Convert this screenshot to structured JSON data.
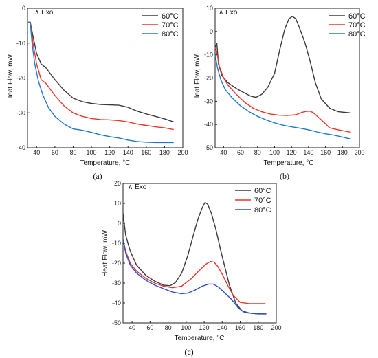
{
  "chart_data": [
    {
      "id": "a",
      "type": "line",
      "panel_label": "(a)",
      "xlabel": "Temperature, °C",
      "ylabel": "Heat Flow, mW",
      "annotation": "Exo",
      "xlim": [
        30,
        200
      ],
      "ylim": [
        -40,
        0
      ],
      "xticks": [
        40,
        60,
        80,
        100,
        120,
        140,
        160,
        180,
        200
      ],
      "yticks": [
        0,
        -10,
        -20,
        -30,
        -40
      ],
      "legend_position": "top-right",
      "series": [
        {
          "name": "60°C",
          "color": "#3a3a3a",
          "points": [
            [
              31,
              -4
            ],
            [
              33,
              -4
            ],
            [
              36,
              -8
            ],
            [
              40,
              -13
            ],
            [
              45,
              -16
            ],
            [
              50,
              -17
            ],
            [
              60,
              -20.5
            ],
            [
              70,
              -23.5
            ],
            [
              80,
              -25.8
            ],
            [
              90,
              -26.8
            ],
            [
              100,
              -27.3
            ],
            [
              110,
              -27.6
            ],
            [
              120,
              -27.7
            ],
            [
              130,
              -27.8
            ],
            [
              140,
              -28.4
            ],
            [
              150,
              -29.5
            ],
            [
              160,
              -30.3
            ],
            [
              170,
              -31
            ],
            [
              180,
              -31.7
            ],
            [
              190,
              -32.6
            ]
          ]
        },
        {
          "name": "70°C",
          "color": "#e8352c",
          "points": [
            [
              31,
              -4
            ],
            [
              33,
              -4
            ],
            [
              36,
              -10
            ],
            [
              40,
              -16
            ],
            [
              45,
              -20.5
            ],
            [
              50,
              -21.5
            ],
            [
              60,
              -25
            ],
            [
              70,
              -28
            ],
            [
              80,
              -30
            ],
            [
              90,
              -31
            ],
            [
              100,
              -31.6
            ],
            [
              110,
              -31.9
            ],
            [
              120,
              -32
            ],
            [
              130,
              -32.2
            ],
            [
              140,
              -32.6
            ],
            [
              150,
              -33.2
            ],
            [
              160,
              -33.6
            ],
            [
              170,
              -34
            ],
            [
              180,
              -34.3
            ],
            [
              190,
              -34.8
            ]
          ]
        },
        {
          "name": "80°C",
          "color": "#2278c8",
          "points": [
            [
              31,
              -4
            ],
            [
              33,
              -4
            ],
            [
              35,
              -10
            ],
            [
              38,
              -16
            ],
            [
              42,
              -21
            ],
            [
              47,
              -25
            ],
            [
              53,
              -28.5
            ],
            [
              60,
              -31
            ],
            [
              70,
              -33.2
            ],
            [
              80,
              -34.6
            ],
            [
              90,
              -35
            ],
            [
              100,
              -35.6
            ],
            [
              110,
              -36.3
            ],
            [
              120,
              -36.8
            ],
            [
              130,
              -37.2
            ],
            [
              140,
              -37.8
            ],
            [
              150,
              -38.2
            ],
            [
              160,
              -38.4
            ],
            [
              170,
              -38.5
            ],
            [
              180,
              -38.5
            ],
            [
              190,
              -38.5
            ]
          ]
        }
      ]
    },
    {
      "id": "b",
      "type": "line",
      "panel_label": "(b)",
      "xlabel": "Temperature, °C",
      "ylabel": "Heat Flow, mW",
      "annotation": "Exo",
      "xlim": [
        30,
        200
      ],
      "ylim": [
        -50,
        10
      ],
      "xticks": [
        40,
        60,
        80,
        100,
        120,
        140,
        160,
        180,
        200
      ],
      "yticks": [
        10,
        0,
        -10,
        -20,
        -30,
        -40,
        -50
      ],
      "legend_position": "top-right",
      "series": [
        {
          "name": "60°C",
          "color": "#3a3a3a",
          "points": [
            [
              30,
              -7
            ],
            [
              32,
              -5
            ],
            [
              34,
              -14
            ],
            [
              38,
              -19
            ],
            [
              45,
              -22
            ],
            [
              55,
              -24.5
            ],
            [
              65,
              -26.5
            ],
            [
              72,
              -27.8
            ],
            [
              78,
              -28.3
            ],
            [
              85,
              -27
            ],
            [
              92,
              -24
            ],
            [
              100,
              -18
            ],
            [
              106,
              -8
            ],
            [
              112,
              1
            ],
            [
              117,
              5.5
            ],
            [
              121,
              6.5
            ],
            [
              125,
              5.5
            ],
            [
              130,
              1
            ],
            [
              136,
              -5
            ],
            [
              142,
              -13
            ],
            [
              148,
              -22
            ],
            [
              155,
              -29
            ],
            [
              165,
              -33
            ],
            [
              175,
              -34.5
            ],
            [
              189,
              -35
            ]
          ]
        },
        {
          "name": "70°C",
          "color": "#e8352c",
          "points": [
            [
              30,
              -7
            ],
            [
              32,
              -9
            ],
            [
              35,
              -15
            ],
            [
              40,
              -20
            ],
            [
              45,
              -23
            ],
            [
              55,
              -27
            ],
            [
              65,
              -30.5
            ],
            [
              75,
              -33
            ],
            [
              85,
              -34.5
            ],
            [
              95,
              -35.5
            ],
            [
              105,
              -36
            ],
            [
              115,
              -36.1
            ],
            [
              125,
              -35.8
            ],
            [
              132,
              -34.8
            ],
            [
              138,
              -34.3
            ],
            [
              142,
              -34.3
            ],
            [
              146,
              -35
            ],
            [
              152,
              -37
            ],
            [
              158,
              -39
            ],
            [
              165,
              -41.5
            ],
            [
              175,
              -42.3
            ],
            [
              189,
              -43.3
            ]
          ]
        },
        {
          "name": "80°C",
          "color": "#2278c8",
          "points": [
            [
              30,
              -10
            ],
            [
              33,
              -16
            ],
            [
              37,
              -21
            ],
            [
              42,
              -25
            ],
            [
              50,
              -28.5
            ],
            [
              60,
              -32
            ],
            [
              70,
              -34.5
            ],
            [
              80,
              -36.5
            ],
            [
              90,
              -38
            ],
            [
              100,
              -39.3
            ],
            [
              110,
              -40.3
            ],
            [
              120,
              -41
            ],
            [
              130,
              -41.6
            ],
            [
              140,
              -42.3
            ],
            [
              150,
              -43.2
            ],
            [
              160,
              -44
            ],
            [
              170,
              -44.6
            ],
            [
              180,
              -45.4
            ],
            [
              189,
              -46.2
            ]
          ]
        }
      ]
    },
    {
      "id": "c",
      "type": "line",
      "panel_label": "(c)",
      "xlabel": "Temperature, °C",
      "ylabel": "Heat Flow, mW",
      "annotation": "Exo",
      "xlim": [
        30,
        200
      ],
      "ylim": [
        -50,
        20
      ],
      "xticks": [
        40,
        60,
        80,
        100,
        120,
        140,
        160,
        180,
        200
      ],
      "yticks": [
        20,
        10,
        0,
        -10,
        -20,
        -30,
        -40,
        -50
      ],
      "legend_position": "top-right",
      "series": [
        {
          "name": "60°C",
          "color": "#3a3a3a",
          "points": [
            [
              30,
              5
            ],
            [
              33,
              -6
            ],
            [
              38,
              -14
            ],
            [
              45,
              -21
            ],
            [
              55,
              -26
            ],
            [
              65,
              -29
            ],
            [
              75,
              -31
            ],
            [
              82,
              -31.3
            ],
            [
              88,
              -29.8
            ],
            [
              95,
              -25
            ],
            [
              102,
              -16
            ],
            [
              108,
              -6
            ],
            [
              113,
              2
            ],
            [
              118,
              8
            ],
            [
              121,
              10.5
            ],
            [
              124,
              9.5
            ],
            [
              128,
              5
            ],
            [
              133,
              -3
            ],
            [
              138,
              -13
            ],
            [
              143,
              -22
            ],
            [
              148,
              -31
            ],
            [
              155,
              -40
            ],
            [
              162,
              -44
            ],
            [
              170,
              -45
            ],
            [
              180,
              -45.5
            ],
            [
              189,
              -45.5
            ]
          ]
        },
        {
          "name": "70°C",
          "color": "#e8352c",
          "points": [
            [
              30,
              -8
            ],
            [
              33,
              -14
            ],
            [
              38,
              -20
            ],
            [
              45,
              -24
            ],
            [
              55,
              -27.5
            ],
            [
              65,
              -30
            ],
            [
              75,
              -31.5
            ],
            [
              85,
              -32.3
            ],
            [
              95,
              -31.5
            ],
            [
              105,
              -28
            ],
            [
              115,
              -23.5
            ],
            [
              122,
              -20.5
            ],
            [
              127,
              -19.2
            ],
            [
              131,
              -19.5
            ],
            [
              135,
              -21.5
            ],
            [
              140,
              -25.5
            ],
            [
              146,
              -31
            ],
            [
              152,
              -36
            ],
            [
              160,
              -39.7
            ],
            [
              170,
              -40.3
            ],
            [
              180,
              -40.3
            ],
            [
              188,
              -40.3
            ]
          ]
        },
        {
          "name": "80°C",
          "color": "#2a4fd0",
          "points": [
            [
              30,
              -8
            ],
            [
              33,
              -15
            ],
            [
              38,
              -21
            ],
            [
              45,
              -25
            ],
            [
              55,
              -28.5
            ],
            [
              65,
              -31
            ],
            [
              75,
              -32.8
            ],
            [
              85,
              -34.5
            ],
            [
              95,
              -35.3
            ],
            [
              102,
              -35
            ],
            [
              110,
              -33.5
            ],
            [
              118,
              -31.5
            ],
            [
              125,
              -30.5
            ],
            [
              130,
              -30.5
            ],
            [
              136,
              -32
            ],
            [
              142,
              -34.5
            ],
            [
              150,
              -38
            ],
            [
              158,
              -42.5
            ],
            [
              165,
              -44.8
            ],
            [
              175,
              -45.3
            ],
            [
              188,
              -45.5
            ]
          ]
        }
      ]
    }
  ]
}
